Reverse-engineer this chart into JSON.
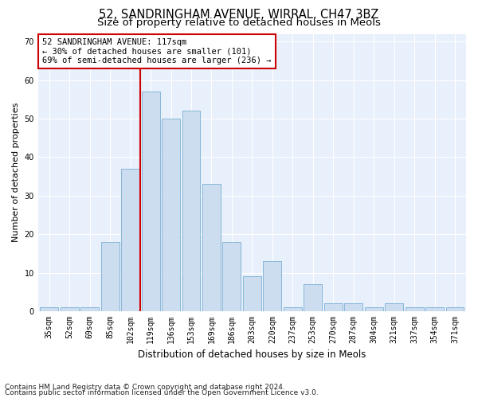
{
  "title1": "52, SANDRINGHAM AVENUE, WIRRAL, CH47 3BZ",
  "title2": "Size of property relative to detached houses in Meols",
  "xlabel": "Distribution of detached houses by size in Meols",
  "ylabel": "Number of detached properties",
  "categories": [
    "35sqm",
    "52sqm",
    "69sqm",
    "85sqm",
    "102sqm",
    "119sqm",
    "136sqm",
    "153sqm",
    "169sqm",
    "186sqm",
    "203sqm",
    "220sqm",
    "237sqm",
    "253sqm",
    "270sqm",
    "287sqm",
    "304sqm",
    "321sqm",
    "337sqm",
    "354sqm",
    "371sqm"
  ],
  "values": [
    1,
    1,
    1,
    18,
    37,
    57,
    50,
    52,
    33,
    18,
    9,
    13,
    1,
    7,
    2,
    2,
    1,
    2,
    1,
    1,
    1
  ],
  "bar_color": "#ccddf0",
  "bar_edge_color": "#7aafd4",
  "vline_color": "#cc0000",
  "vline_index": 4.5,
  "annotation_text": "52 SANDRINGHAM AVENUE: 117sqm\n← 30% of detached houses are smaller (101)\n69% of semi-detached houses are larger (236) →",
  "annotation_box_color": "#ffffff",
  "annotation_box_edge": "#cc0000",
  "ylim": [
    0,
    72
  ],
  "yticks": [
    0,
    10,
    20,
    30,
    40,
    50,
    60,
    70
  ],
  "footnote1": "Contains HM Land Registry data © Crown copyright and database right 2024.",
  "footnote2": "Contains public sector information licensed under the Open Government Licence v3.0.",
  "bg_color": "#e8f0fb",
  "fig_bg_color": "#ffffff",
  "title1_fontsize": 10.5,
  "title2_fontsize": 9.5,
  "xlabel_fontsize": 8.5,
  "ylabel_fontsize": 8,
  "tick_fontsize": 7,
  "annot_fontsize": 7.5,
  "footnote_fontsize": 6.5
}
